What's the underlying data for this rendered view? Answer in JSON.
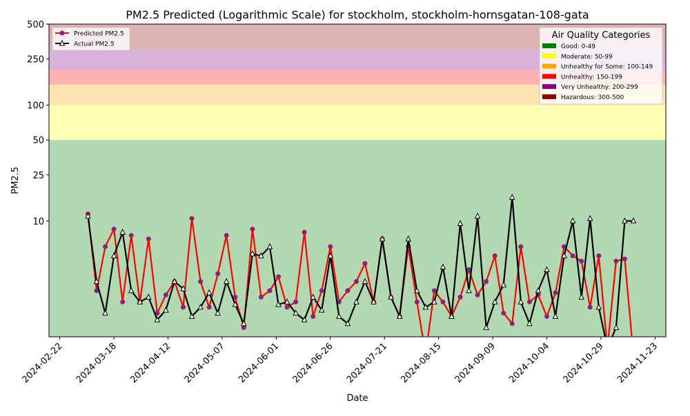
{
  "chart_data": {
    "type": "line",
    "title": "PM2.5 Predicted (Logarithmic Scale) for stockholm, stockholm-hornsgatan-108-gata",
    "x_label": "Date",
    "y_label": "PM2.5",
    "log_scale": true,
    "x": [
      "2024-03-06",
      "2024-03-10",
      "2024-03-14",
      "2024-03-18",
      "2024-03-22",
      "2024-03-26",
      "2024-03-30",
      "2024-04-03",
      "2024-04-07",
      "2024-04-11",
      "2024-04-15",
      "2024-04-19",
      "2024-04-23",
      "2024-04-27",
      "2024-05-01",
      "2024-05-05",
      "2024-05-09",
      "2024-05-13",
      "2024-05-17",
      "2024-05-21",
      "2024-05-25",
      "2024-05-29",
      "2024-06-02",
      "2024-06-06",
      "2024-06-10",
      "2024-06-14",
      "2024-06-18",
      "2024-06-22",
      "2024-06-26",
      "2024-06-30",
      "2024-07-04",
      "2024-07-08",
      "2024-07-12",
      "2024-07-16",
      "2024-07-20",
      "2024-07-24",
      "2024-07-28",
      "2024-08-01",
      "2024-08-05",
      "2024-08-09",
      "2024-08-13",
      "2024-08-17",
      "2024-08-21",
      "2024-08-25",
      "2024-08-29",
      "2024-09-02",
      "2024-09-06",
      "2024-09-10",
      "2024-09-14",
      "2024-09-18",
      "2024-09-22",
      "2024-09-26",
      "2024-09-30",
      "2024-10-04",
      "2024-10-08",
      "2024-10-12",
      "2024-10-16",
      "2024-10-20",
      "2024-10-24",
      "2024-10-28",
      "2024-11-01",
      "2024-11-05",
      "2024-11-09",
      "2024-11-13"
    ],
    "series": [
      {
        "name": "Predicted PM2.5",
        "color": "#ff0000",
        "marker_color": "#3a3ad0",
        "marker": "circle",
        "values": [
          11.5,
          2.5,
          6,
          8.5,
          2,
          7.5,
          2,
          7,
          1.6,
          2.3,
          3,
          1.8,
          10.5,
          3,
          1.8,
          3.5,
          7.5,
          2.2,
          1.2,
          8.5,
          2.2,
          2.5,
          3.3,
          1.8,
          2,
          8,
          1.5,
          2.5,
          6,
          2,
          2.5,
          3,
          4.3,
          2,
          7,
          2.2,
          1.5,
          6,
          2,
          0.7,
          2.5,
          2,
          1.5,
          2.2,
          3.8,
          2.3,
          3,
          5,
          1.6,
          1.3,
          6,
          2,
          2.3,
          1.5,
          2.4,
          6,
          5,
          4.5,
          1.8,
          5,
          0.8,
          4.5,
          4.7,
          0.7
        ]
      },
      {
        "name": "Actual PM2.5",
        "color": "#000000",
        "marker_color": "#ffffff",
        "marker": "triangle",
        "values": [
          11,
          3,
          1.6,
          5,
          8,
          2.5,
          2,
          2.2,
          1.4,
          1.7,
          3,
          2.6,
          1.5,
          1.8,
          2.4,
          1.6,
          3,
          1.9,
          1.3,
          5.2,
          5,
          6,
          1.9,
          2,
          1.6,
          1.4,
          2.2,
          1.7,
          5,
          1.5,
          1.3,
          2,
          3,
          2,
          7,
          2.2,
          1.5,
          7,
          2.5,
          1.8,
          2,
          4,
          1.5,
          9.5,
          2.5,
          11,
          1.2,
          2,
          2.8,
          16,
          2,
          1.3,
          2.5,
          3.8,
          1.5,
          5,
          10,
          2.2,
          10.5,
          1.8,
          0.8,
          1.2,
          10,
          10
        ]
      }
    ],
    "xlim": [
      "2024-02-17",
      "2024-11-28"
    ],
    "xticks": [
      "2024-02-22",
      "2024-03-18",
      "2024-04-12",
      "2024-05-07",
      "2024-06-01",
      "2024-06-26",
      "2024-07-21",
      "2024-08-15",
      "2024-09-09",
      "2024-10-04",
      "2024-10-29",
      "2024-11-23"
    ],
    "ylim": [
      1,
      500
    ],
    "yticks": [
      10,
      25,
      50,
      100,
      250,
      500
    ],
    "legend_position": "upper left",
    "categories_legend": {
      "title": "Air Quality Categories",
      "position": "upper right",
      "items": [
        {
          "label": "Good: 0-49",
          "color": "#008000",
          "upper": 50
        },
        {
          "label": "Moderate: 50-99",
          "color": "#ffff00",
          "upper": 100
        },
        {
          "label": "Unhealthy for Some: 100-149",
          "color": "#ffa500",
          "upper": 150
        },
        {
          "label": "Unhealthy: 150-199",
          "color": "#ff0000",
          "upper": 200
        },
        {
          "label": "Very Unhealthy: 200-299",
          "color": "#800080",
          "upper": 300
        },
        {
          "label": "Hazardous: 300-500",
          "color": "#8b0000",
          "upper": 500
        }
      ]
    }
  }
}
